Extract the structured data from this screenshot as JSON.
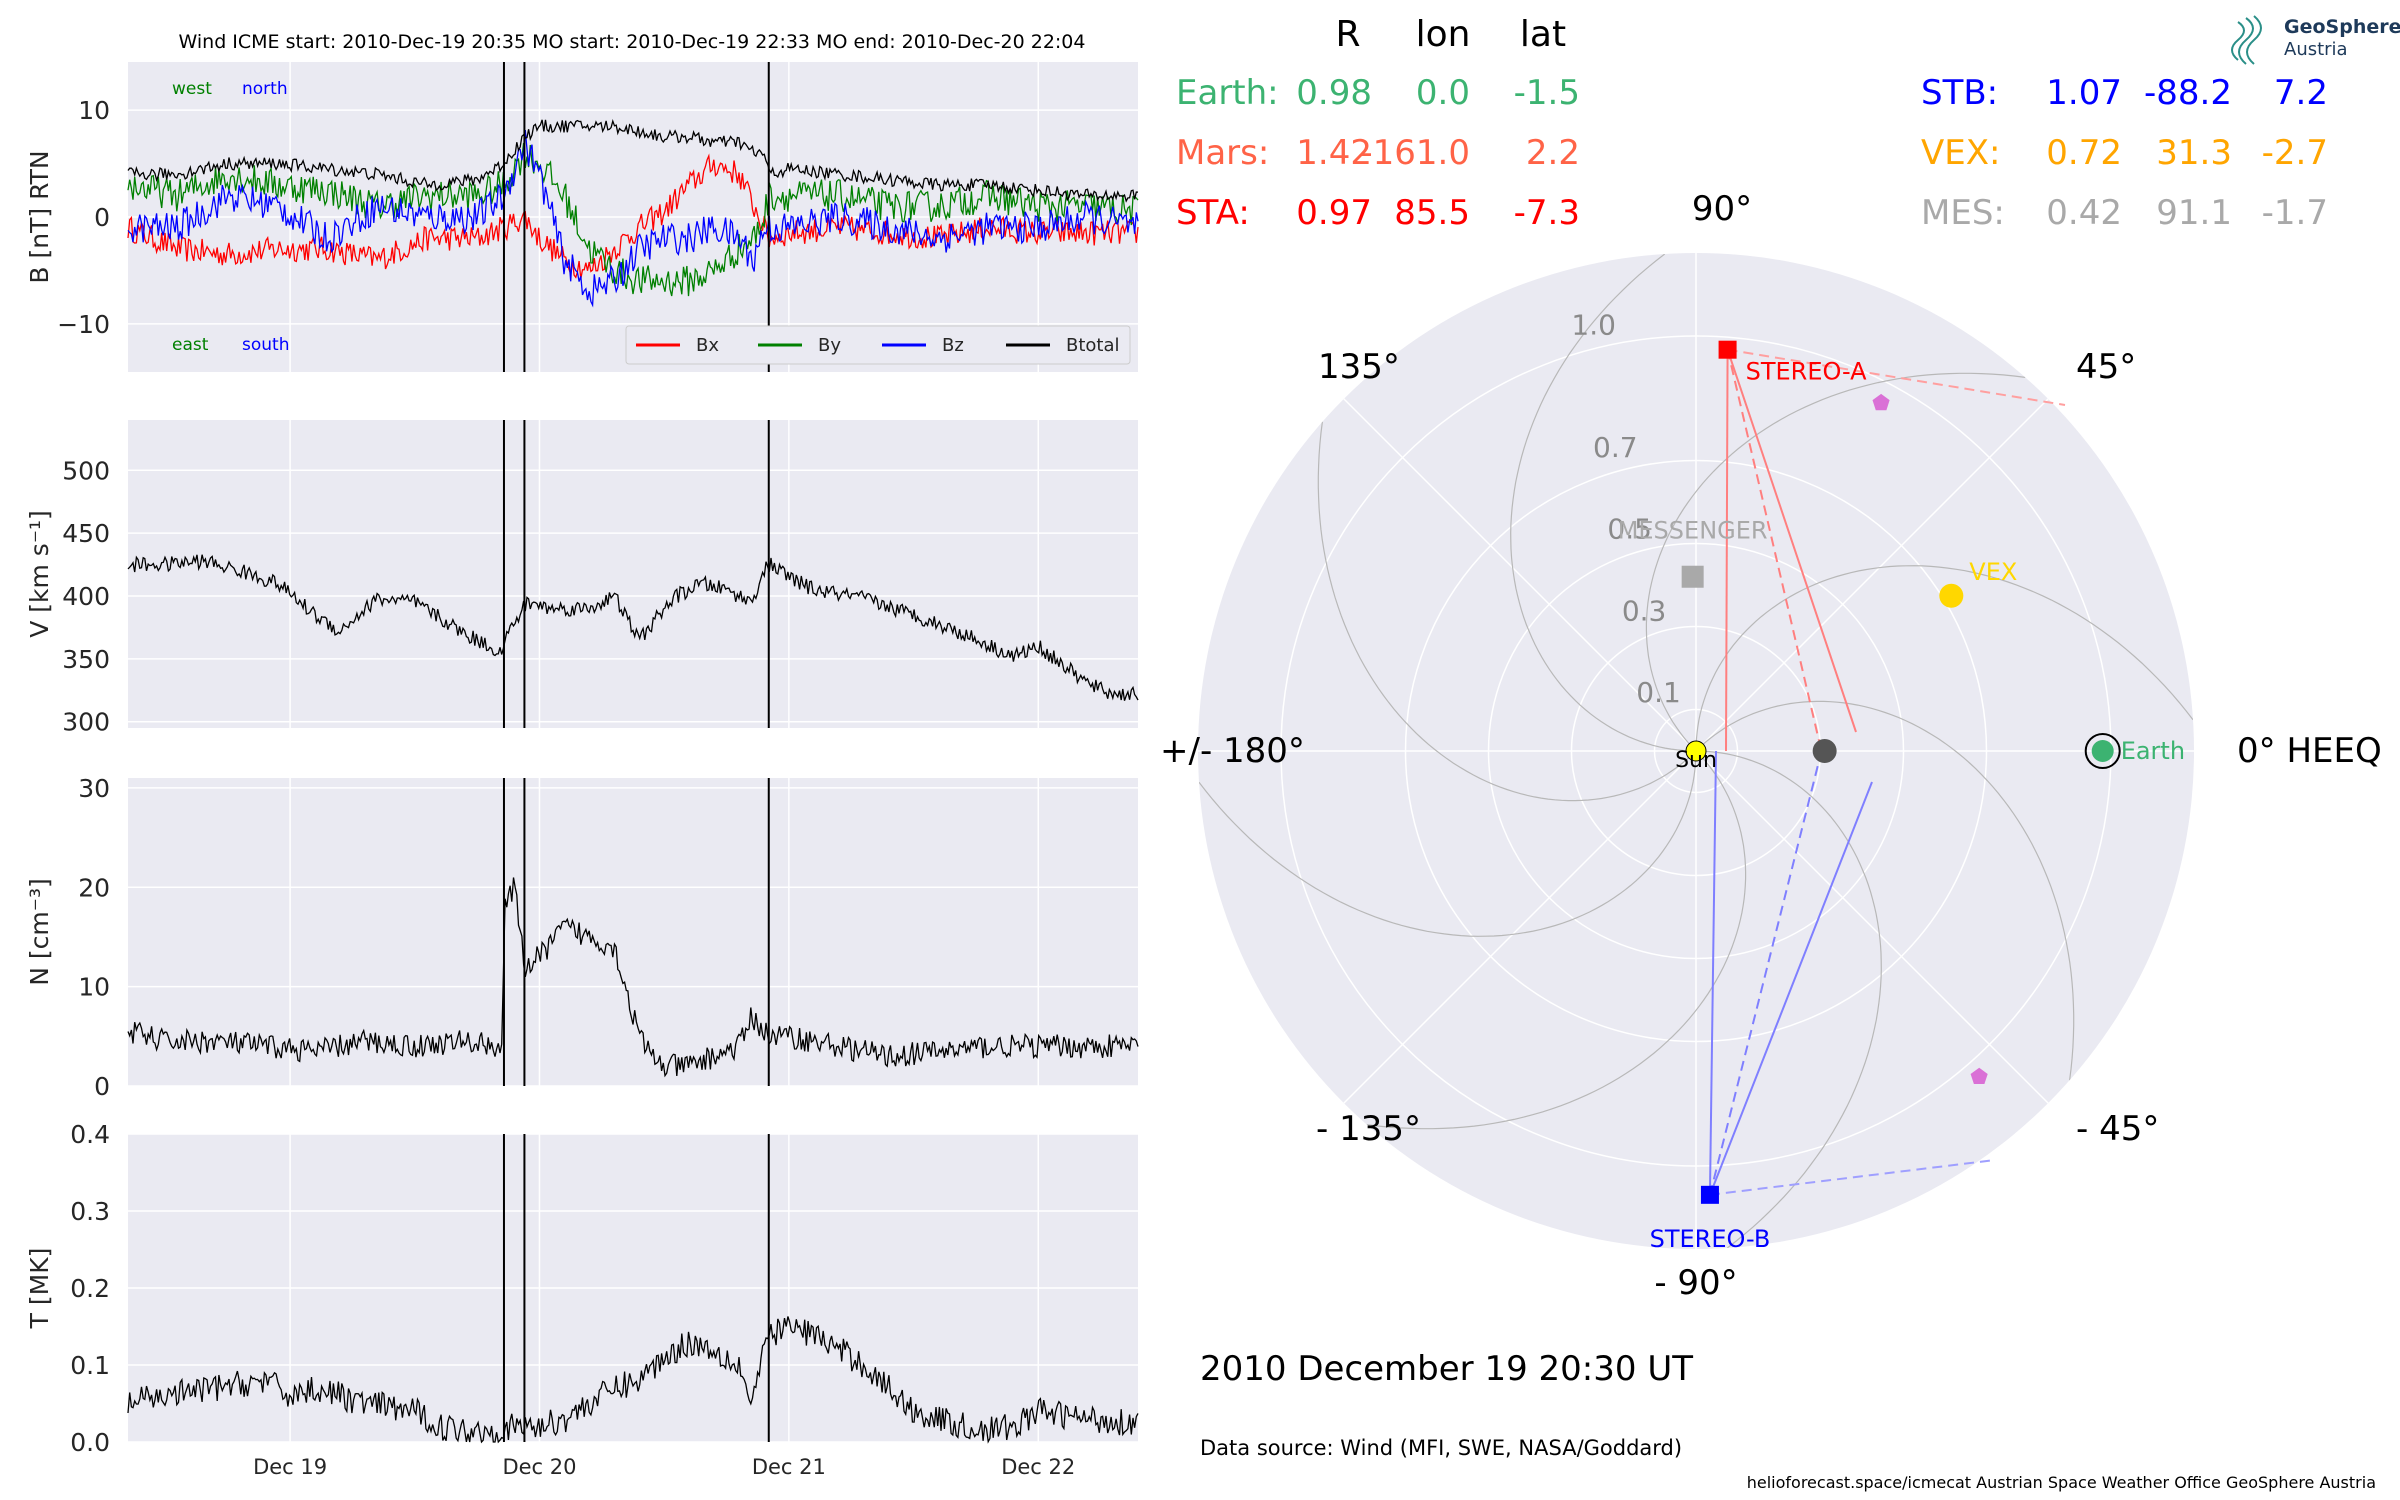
{
  "header": {
    "title": "Wind    ICME start: 2010-Dec-19 20:35   MO start: 2010-Dec-19 22:33   MO end: 2010-Dec-20 22:04"
  },
  "time_axis": {
    "ticks": [
      {
        "x": 1.0,
        "label": "Dec 19"
      },
      {
        "x": 2.0,
        "label": "Dec 20"
      },
      {
        "x": 3.0,
        "label": "Dec 21"
      },
      {
        "x": 4.0,
        "label": "Dec 22"
      }
    ]
  },
  "event_lines": [
    {
      "name": "ICME start",
      "x": 1.8576
    },
    {
      "name": "MO start",
      "x": 1.9396
    },
    {
      "name": "MO end",
      "x": 2.9194
    }
  ],
  "colors": {
    "Bx": "#ff0000",
    "By": "#008000",
    "Bz": "#0000ff",
    "Btotal": "#000000",
    "panel_bg": "#eaeaf2",
    "Earth": "#3cb371",
    "Mars": "#ff6347",
    "STA": "#ff0000",
    "STB": "#0000ff",
    "VEX": "#ffa500",
    "MES": "#a9a9a9",
    "Sun": "#ffff00"
  },
  "chart_data": [
    {
      "type": "line",
      "ylabel": "B [nT] RTN",
      "ylim": [
        -14.5,
        14.5
      ],
      "yticks": [
        {
          "v": 10,
          "label": "10"
        },
        {
          "v": 0,
          "label": "0"
        },
        {
          "v": -10,
          "label": "−10"
        }
      ],
      "legend": [
        "Bx",
        "By",
        "Bz",
        "Btotal"
      ],
      "legend_position": "lower right",
      "annotations": {
        "west": "west",
        "north": "north",
        "east": "east",
        "south": "south"
      },
      "x": [
        0.35,
        0.55,
        0.75,
        0.95,
        1.15,
        1.35,
        1.55,
        1.75,
        1.857,
        1.94,
        2.0,
        2.1,
        2.2,
        2.3,
        2.4,
        2.5,
        2.6,
        2.7,
        2.8,
        2.86,
        2.9,
        2.92,
        3.0,
        3.2,
        3.4,
        3.6,
        3.8,
        4.0,
        4.2,
        4.4
      ],
      "series": [
        {
          "name": "Bx",
          "values": [
            -1,
            -3,
            -3.5,
            -3,
            -3,
            -4,
            -2,
            -2,
            -1,
            0,
            -2,
            -4,
            -5,
            -3,
            -1,
            0.5,
            3,
            5,
            4,
            1,
            -1,
            -2,
            -1.5,
            -1,
            -1.5,
            -2,
            -1,
            -1.5,
            -1.5,
            -1.5
          ]
        },
        {
          "name": "By",
          "values": [
            3,
            2,
            4,
            3,
            2.5,
            1,
            2,
            2,
            3,
            6,
            5,
            2,
            -3,
            -5,
            -6,
            -6,
            -6,
            -5,
            -3,
            -2,
            0,
            2,
            2,
            2,
            1,
            1,
            2,
            1,
            1,
            0.5
          ]
        },
        {
          "name": "Bz",
          "values": [
            -1,
            -1,
            2,
            1,
            -2,
            1,
            0,
            0,
            2,
            7,
            4,
            -4,
            -7,
            -6,
            -3,
            -2,
            -2,
            -1,
            -2,
            -4,
            -1,
            -1,
            -1,
            0,
            -1,
            -2,
            -1,
            -1,
            0,
            -1
          ]
        },
        {
          "name": "Btotal",
          "values": [
            4,
            4,
            5,
            5,
            4.5,
            4,
            3,
            3.5,
            5,
            7.5,
            8.5,
            8.5,
            8.5,
            8.5,
            8,
            7.5,
            7.5,
            7,
            7,
            6,
            6,
            4,
            4.5,
            4,
            3.5,
            3,
            3,
            2.5,
            2,
            2
          ]
        }
      ]
    },
    {
      "type": "line",
      "ylabel": "V [km s⁻¹]",
      "ylim": [
        295,
        540
      ],
      "yticks": [
        {
          "v": 500,
          "label": "500"
        },
        {
          "v": 450,
          "label": "450"
        },
        {
          "v": 400,
          "label": "400"
        },
        {
          "v": 350,
          "label": "350"
        },
        {
          "v": 300,
          "label": "300"
        }
      ],
      "x": [
        0.35,
        0.5,
        0.65,
        0.8,
        0.95,
        1.1,
        1.2,
        1.35,
        1.5,
        1.7,
        1.85,
        1.86,
        1.95,
        2.05,
        2.2,
        2.3,
        2.4,
        2.5,
        2.55,
        2.65,
        2.75,
        2.85,
        2.9,
        2.93,
        3.0,
        3.1,
        3.3,
        3.5,
        3.7,
        3.9,
        4.0,
        4.1,
        4.2,
        4.3,
        4.4
      ],
      "values": [
        425,
        425,
        428,
        420,
        410,
        385,
        372,
        398,
        395,
        370,
        355,
        365,
        395,
        390,
        390,
        400,
        365,
        390,
        400,
        410,
        405,
        395,
        420,
        425,
        415,
        405,
        398,
        385,
        370,
        352,
        360,
        345,
        330,
        322,
        322
      ]
    },
    {
      "type": "line",
      "ylabel": "N [cm⁻³]",
      "ylim": [
        0,
        31
      ],
      "yticks": [
        {
          "v": 30,
          "label": "30"
        },
        {
          "v": 20,
          "label": "20"
        },
        {
          "v": 10,
          "label": "10"
        },
        {
          "v": 0,
          "label": "0"
        }
      ],
      "x": [
        0.35,
        0.5,
        0.7,
        0.9,
        1.1,
        1.3,
        1.5,
        1.7,
        1.85,
        1.86,
        1.9,
        1.94,
        2.0,
        2.1,
        2.2,
        2.3,
        2.4,
        2.45,
        2.5,
        2.6,
        2.7,
        2.8,
        2.85,
        2.92,
        3.0,
        3.2,
        3.4,
        3.6,
        3.8,
        4.0,
        4.2,
        4.4
      ],
      "values": [
        5.5,
        4.5,
        4.5,
        4,
        3.5,
        4.5,
        4,
        4.5,
        4,
        18,
        20,
        12,
        13,
        16,
        15,
        14,
        5,
        3,
        2,
        2,
        3,
        4,
        7,
        5,
        5,
        4,
        3,
        3.5,
        4,
        4,
        4,
        4
      ]
    },
    {
      "type": "line",
      "ylabel": "T [MK]",
      "ylim": [
        0,
        0.4
      ],
      "yticks": [
        {
          "v": 0.4,
          "label": "0.4"
        },
        {
          "v": 0.3,
          "label": "0.3"
        },
        {
          "v": 0.2,
          "label": "0.2"
        },
        {
          "v": 0.1,
          "label": "0.1"
        },
        {
          "v": 0.0,
          "label": "0.0"
        }
      ],
      "x": [
        0.35,
        0.5,
        0.7,
        0.9,
        1.0,
        1.1,
        1.3,
        1.5,
        1.6,
        1.7,
        1.85,
        1.9,
        2.0,
        2.1,
        2.2,
        2.3,
        2.4,
        2.5,
        2.6,
        2.7,
        2.8,
        2.85,
        2.92,
        3.0,
        3.1,
        3.2,
        3.3,
        3.4,
        3.5,
        3.7,
        3.8,
        3.9,
        4.0,
        4.2,
        4.4
      ],
      "values": [
        0.05,
        0.06,
        0.07,
        0.08,
        0.06,
        0.07,
        0.05,
        0.04,
        0.02,
        0.015,
        0.015,
        0.02,
        0.02,
        0.03,
        0.05,
        0.07,
        0.08,
        0.11,
        0.13,
        0.12,
        0.1,
        0.05,
        0.14,
        0.15,
        0.14,
        0.12,
        0.1,
        0.07,
        0.04,
        0.02,
        0.015,
        0.02,
        0.04,
        0.03,
        0.025
      ]
    },
    {
      "type": "scatter",
      "projection": "polar",
      "rticks": [
        {
          "v": 0.1,
          "label": "0.1"
        },
        {
          "v": 0.3,
          "label": "0.3"
        },
        {
          "v": 0.5,
          "label": "0.5"
        },
        {
          "v": 0.7,
          "label": "0.7"
        },
        {
          "v": 1.0,
          "label": "1.0"
        }
      ],
      "rmax": 1.2,
      "angle_labels": [
        {
          "angle": 0,
          "label": "0° HEEQ"
        },
        {
          "angle": 45,
          "label": "45°"
        },
        {
          "angle": 90,
          "label": "90°"
        },
        {
          "angle": 135,
          "label": "135°"
        },
        {
          "angle": 180,
          "label": "+/- 180°"
        },
        {
          "angle": -135,
          "label": "- 135°"
        },
        {
          "angle": -90,
          "label": "- 90°"
        },
        {
          "angle": -45,
          "label": "- 45°"
        }
      ],
      "bodies": [
        {
          "name": "Sun",
          "label": "Sun",
          "r": 0.0,
          "lon": 0.0,
          "color": "#ffff00"
        },
        {
          "name": "Earth",
          "label": "Earth",
          "r": 0.98,
          "lon": 0.0,
          "color": "#3cb371"
        },
        {
          "name": "STEREO-A",
          "label": "STEREO-A",
          "r": 0.97,
          "lon": 85.5,
          "color": "#ff0000"
        },
        {
          "name": "STEREO-B",
          "label": "STEREO-B",
          "r": 1.07,
          "lon": -88.2,
          "color": "#0000ff"
        },
        {
          "name": "VEX",
          "label": "VEX",
          "r": 0.72,
          "lon": 31.3,
          "color": "#ffd700"
        },
        {
          "name": "MESSENGER",
          "label": "MESSENGER",
          "r": 0.42,
          "lon": 91.1,
          "color": "#a9a9a9"
        },
        {
          "name": "Mars",
          "label": "",
          "r": 1.42,
          "lon": -161.0,
          "color": "#ff6347"
        },
        {
          "name": "inner-body",
          "label": "",
          "r": 0.31,
          "lon": 0.0,
          "color": "#555555"
        },
        {
          "name": "probe-1",
          "label": "",
          "r": 0.95,
          "lon": 62,
          "color": "#da70d6"
        },
        {
          "name": "probe-2",
          "label": "",
          "r": 1.04,
          "lon": -49,
          "color": "#da70d6"
        }
      ]
    }
  ],
  "positions_table": {
    "headers": [
      "R",
      "lon",
      "lat"
    ],
    "left": [
      {
        "name": "Earth:",
        "R": "0.98",
        "lon": "0.0",
        "lat": "-1.5",
        "color": "#3cb371"
      },
      {
        "name": "Mars:",
        "R": "1.42",
        "lon": "-161.0",
        "lat": "2.2",
        "color": "#ff6347"
      },
      {
        "name": "STA:",
        "R": "0.97",
        "lon": "85.5",
        "lat": "-7.3",
        "color": "#ff0000"
      }
    ],
    "right": [
      {
        "name": "STB:",
        "R": "1.07",
        "lon": "-88.2",
        "lat": "7.2",
        "color": "#0000ff"
      },
      {
        "name": "VEX:",
        "R": "0.72",
        "lon": "31.3",
        "lat": "-2.7",
        "color": "#ffa500"
      },
      {
        "name": "MES:",
        "R": "0.42",
        "lon": "91.1",
        "lat": "-1.7",
        "color": "#a9a9a9"
      }
    ]
  },
  "logo": {
    "line1": "GeoSphere",
    "line2": "Austria"
  },
  "timestamp": "2010 December 19  20:30 UT",
  "data_source": "Data source: Wind (MFI, SWE, NASA/Goddard)",
  "footer": "helioforecast.space/icmecat   Austrian Space Weather Office   GeoSphere Austria"
}
